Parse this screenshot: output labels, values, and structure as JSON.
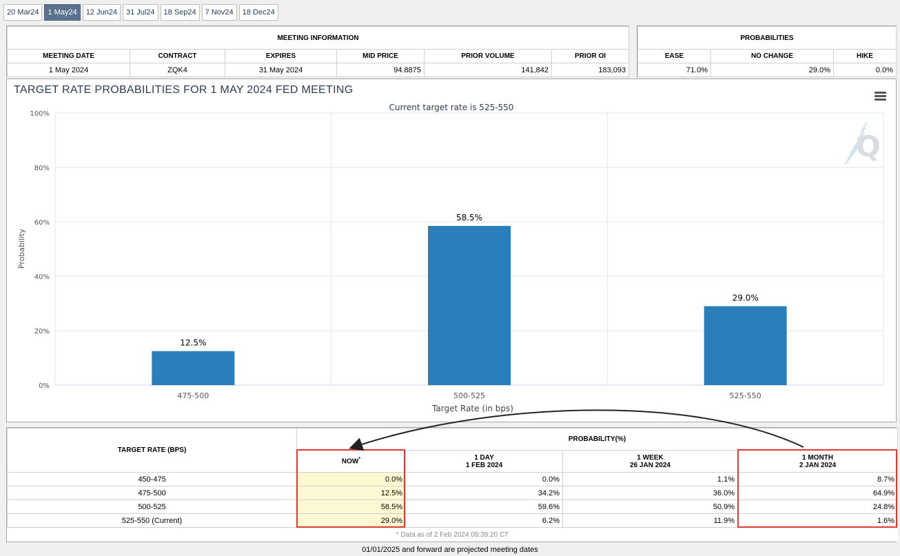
{
  "tabs": [
    {
      "label": "20 Mar24",
      "active": false
    },
    {
      "label": "1 May24",
      "active": true
    },
    {
      "label": "12 Jun24",
      "active": false
    },
    {
      "label": "31 Jul24",
      "active": false
    },
    {
      "label": "18 Sep24",
      "active": false
    },
    {
      "label": "7 Nov24",
      "active": false
    },
    {
      "label": "18 Dec24",
      "active": false
    }
  ],
  "meeting_info": {
    "title": "MEETING INFORMATION",
    "headers": [
      "MEETING DATE",
      "CONTRACT",
      "EXPIRES",
      "MID PRICE",
      "PRIOR VOLUME",
      "PRIOR OI"
    ],
    "values": [
      "1 May 2024",
      "ZQK4",
      "31 May 2024",
      "94.8875",
      "141,842",
      "183,093"
    ]
  },
  "probabilities": {
    "title": "PROBABILITIES",
    "headers": [
      "EASE",
      "NO CHANGE",
      "HIKE"
    ],
    "values": [
      "71.0%",
      "29.0%",
      "0.0%"
    ]
  },
  "chart": {
    "title": "TARGET RATE PROBABILITIES FOR 1 MAY 2024 FED MEETING",
    "subtitle": "Current target rate is 525-550",
    "bar_color": "#2a7fba"
  },
  "chart_data": {
    "type": "bar",
    "title": "TARGET RATE PROBABILITIES FOR 1 MAY 2024 FED MEETING",
    "subtitle": "Current target rate is 525-550",
    "categories": [
      "475-500",
      "500-525",
      "525-550"
    ],
    "values": [
      12.5,
      58.5,
      29.0
    ],
    "data_labels": [
      "12.5%",
      "58.5%",
      "29.0%"
    ],
    "xlabel": "Target Rate (in bps)",
    "ylabel": "Probability",
    "ylim": [
      0,
      100
    ],
    "yticks": [
      "0%",
      "20%",
      "40%",
      "60%",
      "80%",
      "100%"
    ],
    "grid": true
  },
  "prob_table": {
    "row_header": "TARGET RATE (BPS)",
    "group_header": "PROBABILITY(%)",
    "columns": [
      {
        "line1": "NOW",
        "line2": ""
      },
      {
        "line1": "1 DAY",
        "line2": "1 FEB 2024"
      },
      {
        "line1": "1 WEEK",
        "line2": "26 JAN 2024"
      },
      {
        "line1": "1 MONTH",
        "line2": "2 JAN 2024"
      }
    ],
    "now_marker": "*",
    "rows": [
      {
        "rate": "450-475",
        "values": [
          "0.0%",
          "0.0%",
          "1.1%",
          "8.7%"
        ]
      },
      {
        "rate": "475-500",
        "values": [
          "12.5%",
          "34.2%",
          "36.0%",
          "64.9%"
        ]
      },
      {
        "rate": "500-525",
        "values": [
          "58.5%",
          "59.6%",
          "50.9%",
          "24.8%"
        ]
      },
      {
        "rate": "525-550 (Current)",
        "values": [
          "29.0%",
          "6.2%",
          "11.9%",
          "1.6%"
        ]
      }
    ],
    "data_note": "* Data as of 2 Feb 2024 09:39:20 CT"
  },
  "footer": "01/01/2025 and forward are projected meeting dates",
  "annotation_color": "#e03a2f"
}
